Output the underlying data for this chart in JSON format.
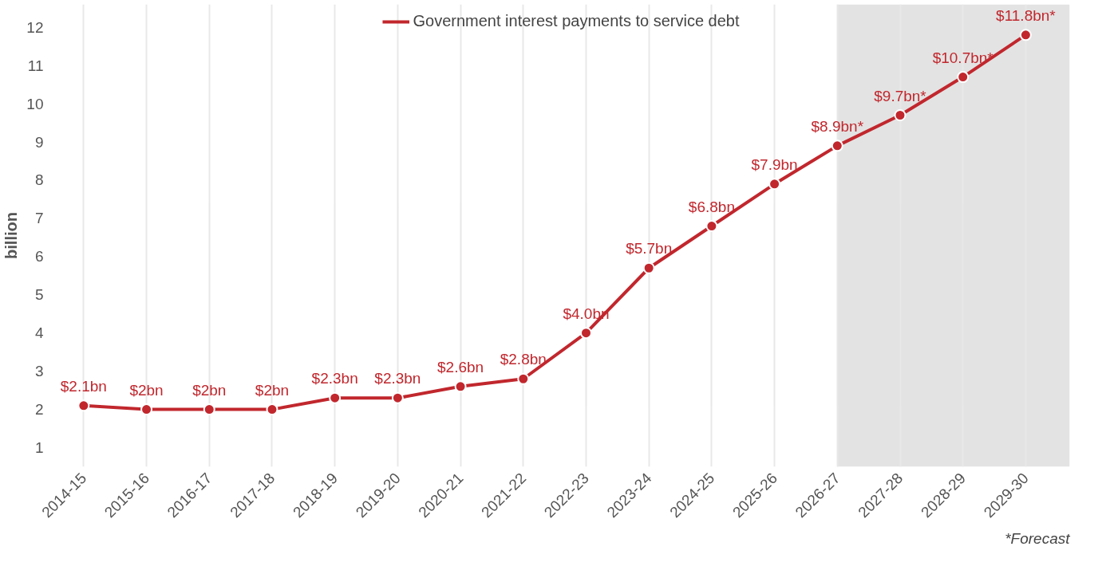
{
  "chart_data": {
    "type": "line",
    "ylabel": "billion",
    "categories": [
      "2014-15",
      "2015-16",
      "2016-17",
      "2017-18",
      "2018-19",
      "2019-20",
      "2020-21",
      "2021-22",
      "2022-23",
      "2023-24",
      "2024-25",
      "2025-26",
      "2026-27",
      "2027-28",
      "2028-29",
      "2029-30"
    ],
    "series": [
      {
        "name": "Government interest payments to service debt",
        "color": "#c1272d",
        "values": [
          2.1,
          2,
          2,
          2,
          2.3,
          2.3,
          2.6,
          2.8,
          4.0,
          5.7,
          6.8,
          7.9,
          8.9,
          9.7,
          10.7,
          11.8
        ],
        "value_labels": [
          "$2.1bn",
          "$2bn",
          "$2bn",
          "$2bn",
          "$2.3bn",
          "$2.3bn",
          "$2.6bn",
          "$2.8bn",
          "$4.0bn",
          "$5.7bn",
          "$6.8bn",
          "$7.9bn",
          "$8.9bn*",
          "$9.7bn*",
          "$10.7bn*",
          "$11.8bn*"
        ]
      }
    ],
    "ylim": [
      0.5,
      12.6
    ],
    "yticks": [
      1,
      2,
      3,
      4,
      5,
      6,
      7,
      8,
      9,
      10,
      11,
      12
    ],
    "bands": [
      {
        "axis": "x",
        "from": "2026-27",
        "to": "2029-30",
        "color": "#e3e3e3"
      }
    ],
    "annotations": [
      "*Forecast"
    ],
    "grid": "x",
    "legend": "top",
    "marker": "circle",
    "line_style": "solid"
  }
}
